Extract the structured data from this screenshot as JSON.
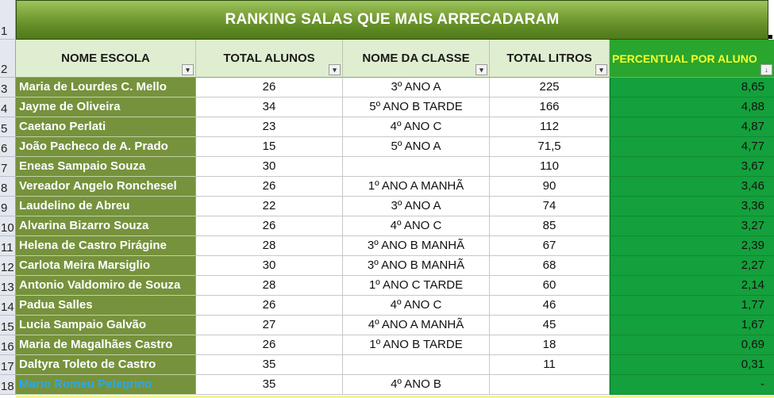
{
  "title": "RANKING SALAS QUE MAIS ARRECADARAM",
  "columns": {
    "school": "NOME ESCOLA",
    "total_students": "TOTAL ALUNOS",
    "class_name": "NOME DA CLASSE",
    "total_liters": "TOTAL LITROS",
    "percent_per_student": "PERCENTUAL POR ALUNO"
  },
  "filter_icons": {
    "default": "▾",
    "sorted_desc": "↓"
  },
  "row_numbers": [
    "1",
    "2",
    "3",
    "4",
    "5",
    "6",
    "7",
    "8",
    "9",
    "10",
    "11",
    "12",
    "13",
    "14",
    "15",
    "16",
    "17",
    "18"
  ],
  "rows": [
    {
      "school": "Maria de Lourdes C. Mello",
      "total": "26",
      "class": "3º ANO A",
      "litros": "225",
      "perc": "8,65"
    },
    {
      "school": "Jayme de Oliveira",
      "total": "34",
      "class": "5º ANO B TARDE",
      "litros": "166",
      "perc": "4,88"
    },
    {
      "school": "Caetano Perlati",
      "total": "23",
      "class": "4º ANO C",
      "litros": "112",
      "perc": "4,87"
    },
    {
      "school": "João Pacheco de A. Prado",
      "total": "15",
      "class": "5º ANO A",
      "litros": "71,5",
      "perc": "4,77"
    },
    {
      "school": "Eneas Sampaio Souza",
      "total": "30",
      "class": "",
      "litros": "110",
      "perc": "3,67"
    },
    {
      "school": "Vereador Angelo Ronchesel",
      "total": "26",
      "class": "1º ANO A MANHÃ",
      "litros": "90",
      "perc": "3,46"
    },
    {
      "school": "Laudelino de Abreu",
      "total": "22",
      "class": "3º ANO A",
      "litros": "74",
      "perc": "3,36"
    },
    {
      "school": "Alvarina Bizarro Souza",
      "total": "26",
      "class": "4º ANO C",
      "litros": "85",
      "perc": "3,27"
    },
    {
      "school": "Helena de Castro Pirágine",
      "total": "28",
      "class": "3º ANO B  MANHÃ",
      "litros": "67",
      "perc": "2,39"
    },
    {
      "school": "Carlota Meira Marsiglio",
      "total": "30",
      "class": "3º ANO B  MANHÃ",
      "litros": "68",
      "perc": "2,27"
    },
    {
      "school": "Antonio Valdomiro de Souza",
      "total": "28",
      "class": "1º ANO C TARDE",
      "litros": "60",
      "perc": "2,14"
    },
    {
      "school": "Padua Salles",
      "total": "26",
      "class": "4º ANO C",
      "litros": "46",
      "perc": "1,77"
    },
    {
      "school": "Lucia Sampaio Galvão",
      "total": "27",
      "class": "4º ANO A MANHÃ",
      "litros": "45",
      "perc": "1,67"
    },
    {
      "school": "Maria de Magalhães Castro",
      "total": "26",
      "class": "1º ANO B TARDE",
      "litros": "18",
      "perc": "0,69"
    },
    {
      "school": "Daltyra Toleto de Castro",
      "total": "35",
      "class": "",
      "litros": "11",
      "perc": "0,31"
    },
    {
      "school": "Mario Romeu Pelegrino",
      "total": "35",
      "class": "4º ANO B",
      "litros": "",
      "perc": "-",
      "highlight": true
    }
  ],
  "colors": {
    "title_green": "#76923c",
    "school_fill": "#76923c",
    "percent_fill": "#14a03c",
    "header_fill": "#dfeed0",
    "percent_header_text": "#f5ff2a",
    "highlight_text": "#2aa8e8"
  }
}
